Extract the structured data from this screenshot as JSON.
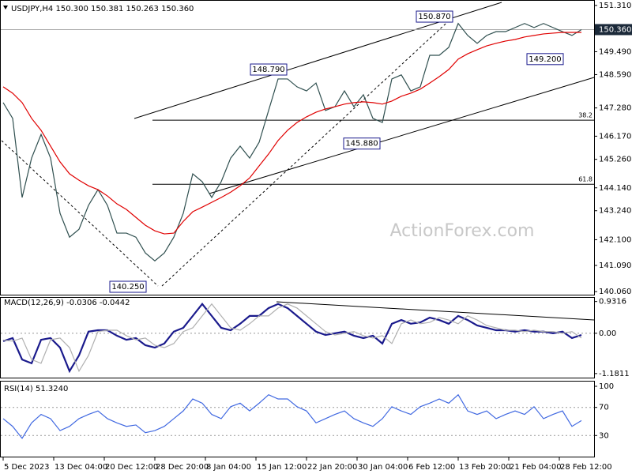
{
  "chart_data": [
    {
      "type": "line",
      "title": "USDJPY,H4  150.300 150.381 150.263 150.360",
      "watermark": "ActionForex.com",
      "ylim": [
        139.94,
        151.43
      ],
      "yticks": [
        {
          "value": 151.31,
          "label": "151.310"
        },
        {
          "value": 149.49,
          "label": "149.490"
        },
        {
          "value": 148.59,
          "label": "148.590"
        },
        {
          "value": 147.28,
          "label": "147.280"
        },
        {
          "value": 146.17,
          "label": "146.170"
        },
        {
          "value": 145.26,
          "label": "145.260"
        },
        {
          "value": 144.14,
          "label": "144.140"
        },
        {
          "value": 143.24,
          "label": "143.240"
        },
        {
          "value": 142.1,
          "label": "142.100"
        },
        {
          "value": 141.09,
          "label": "141.090"
        },
        {
          "value": 140.06,
          "label": "140.060"
        }
      ],
      "last_price": {
        "value": 150.36,
        "label": "150.360"
      },
      "series": [
        {
          "color": "#2f4f4f",
          "values": [
            147.49,
            146.87,
            143.76,
            145.31,
            146.24,
            145.31,
            143.14,
            142.2,
            142.51,
            143.45,
            144.07,
            143.45,
            142.36,
            142.36,
            142.2,
            141.58,
            141.27,
            141.58,
            142.2,
            143.14,
            144.69,
            144.38,
            143.76,
            144.38,
            145.31,
            145.78,
            145.31,
            145.93,
            147.18,
            148.42,
            148.42,
            148.11,
            147.95,
            148.26,
            147.18,
            147.33,
            147.95,
            147.33,
            147.8,
            146.87,
            146.71,
            148.42,
            148.58,
            147.95,
            148.11,
            149.35,
            149.35,
            149.66,
            150.6,
            150.13,
            149.82,
            150.13,
            150.28,
            150.28,
            150.44,
            150.6,
            150.44,
            150.6,
            150.44,
            150.28,
            150.13,
            150.36
          ]
        },
        {
          "color": "#e00000",
          "values": [
            148.11,
            147.86,
            147.49,
            146.87,
            146.4,
            145.78,
            145.16,
            144.69,
            144.44,
            144.22,
            144.07,
            143.82,
            143.51,
            143.29,
            142.98,
            142.67,
            142.45,
            142.33,
            142.36,
            142.82,
            143.2,
            143.38,
            143.57,
            143.76,
            143.97,
            144.22,
            144.53,
            145.0,
            145.47,
            146.0,
            146.4,
            146.71,
            146.93,
            147.11,
            147.24,
            147.33,
            147.43,
            147.49,
            147.52,
            147.49,
            147.43,
            147.55,
            147.74,
            147.86,
            148.02,
            148.26,
            148.51,
            148.79,
            149.2,
            149.41,
            149.57,
            149.72,
            149.82,
            149.91,
            149.97,
            150.07,
            150.13,
            150.19,
            150.22,
            150.25,
            150.25,
            150.25
          ]
        }
      ],
      "annotations": [
        {
          "value": 150.87,
          "label": "150.870"
        },
        {
          "value": 148.79,
          "label": "148.790"
        },
        {
          "value": 145.88,
          "label": "145.880"
        },
        {
          "value": 140.25,
          "label": "140.250"
        },
        {
          "value": 149.2,
          "label": "149.200"
        }
      ],
      "fib_levels": [
        {
          "ratio": 38.2,
          "value": 146.8
        },
        {
          "ratio": 61.8,
          "value": 144.28
        }
      ]
    },
    {
      "type": "line",
      "title": "MACD(12,26,9) -0.0306 -0.0442",
      "ylim": [
        -1.3,
        1.04
      ],
      "yticks": [
        0.9316,
        {
          "value": 0,
          "label": "0.00"
        },
        -1.1811
      ],
      "series": [
        {
          "color": "#1a1a8c",
          "values": [
            -0.23,
            -0.14,
            -0.77,
            -0.88,
            -0.19,
            -0.14,
            -0.42,
            -1.11,
            -0.65,
            0.05,
            0.09,
            0.09,
            -0.07,
            -0.19,
            -0.14,
            -0.35,
            -0.42,
            -0.3,
            0.05,
            0.16,
            0.51,
            0.86,
            0.51,
            0.16,
            0.09,
            0.28,
            0.51,
            0.51,
            0.74,
            0.86,
            0.74,
            0.51,
            0.28,
            0.05,
            -0.05,
            0,
            0.05,
            -0.07,
            -0.14,
            -0.07,
            -0.3,
            0.28,
            0.39,
            0.28,
            0.32,
            0.46,
            0.39,
            0.28,
            0.51,
            0.39,
            0.23,
            0.16,
            0.09,
            0.09,
            0.05,
            0.09,
            0.05,
            0.05,
            0,
            0.05,
            -0.14,
            -0.05
          ]
        },
        {
          "color": "#b0b0b0",
          "values": [
            -0.2,
            -0.23,
            -0.14,
            -0.77,
            -0.88,
            -0.19,
            -0.14,
            -0.42,
            -1.11,
            -0.65,
            0.05,
            0.09,
            0.09,
            -0.07,
            -0.19,
            -0.14,
            -0.35,
            -0.42,
            -0.3,
            0.05,
            0.16,
            0.51,
            0.86,
            0.51,
            0.16,
            0.09,
            0.28,
            0.51,
            0.51,
            0.74,
            0.86,
            0.74,
            0.51,
            0.28,
            0.05,
            -0.05,
            0,
            0.05,
            -0.07,
            -0.14,
            -0.07,
            -0.3,
            0.28,
            0.39,
            0.28,
            0.32,
            0.46,
            0.39,
            0.28,
            0.51,
            0.39,
            0.23,
            0.16,
            0.09,
            0.09,
            0.05,
            0.09,
            0.05,
            0.05,
            0,
            0.05,
            -0.14
          ]
        }
      ]
    },
    {
      "type": "line",
      "title": "RSI(14) 51.3240",
      "ylim": [
        0,
        100
      ],
      "yticks": [
        100,
        70,
        30
      ],
      "series": [
        {
          "color": "#4169e1",
          "values": [
            54,
            43,
            26,
            48,
            60,
            54,
            37,
            43,
            54,
            60,
            65,
            54,
            48,
            43,
            45,
            34,
            37,
            43,
            54,
            65,
            82,
            76,
            60,
            54,
            71,
            76,
            65,
            76,
            88,
            82,
            82,
            71,
            65,
            48,
            54,
            60,
            65,
            54,
            48,
            43,
            54,
            71,
            65,
            60,
            71,
            76,
            82,
            76,
            88,
            65,
            60,
            65,
            54,
            60,
            65,
            60,
            71,
            54,
            60,
            65,
            43,
            51.3
          ]
        }
      ],
      "x_labels": [
        "5 Dec 2023",
        "13 Dec 04:00",
        "20 Dec 12:00",
        "28 Dec 20:00",
        "8 Jan 04:00",
        "15 Jan 12:00",
        "22 Jan 20:00",
        "30 Jan 04:00",
        "6 Feb 12:00",
        "13 Feb 20:00",
        "21 Feb 04:00",
        "28 Feb 12:00"
      ]
    }
  ]
}
